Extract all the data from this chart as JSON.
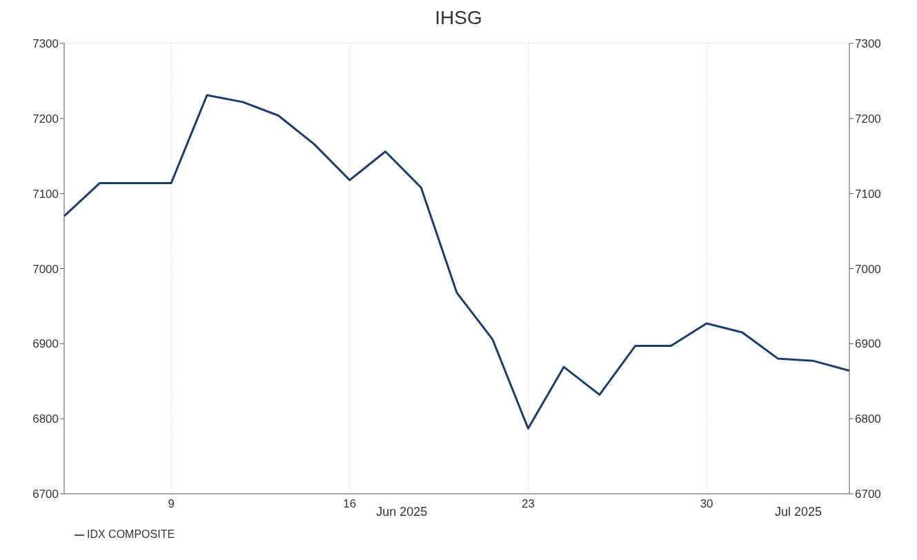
{
  "chart_data": {
    "type": "line",
    "title": "IHSG",
    "categories": [
      null,
      null,
      null,
      "9",
      null,
      null,
      null,
      null,
      "16",
      null,
      null,
      null,
      null,
      "23",
      null,
      null,
      null,
      null,
      "30",
      null,
      null,
      null,
      null
    ],
    "series": [
      {
        "name": "IDX COMPOSITE",
        "color": "#1a3d6d",
        "values": [
          7070,
          7114,
          7114,
          7114,
          7231,
          7222,
          7204,
          7166,
          7118,
          7156,
          7108,
          6968,
          6906,
          6787,
          6869,
          6832,
          6897,
          6897,
          6927,
          6915,
          6880,
          6877,
          6864
        ]
      }
    ],
    "ylim": [
      6700,
      7300
    ],
    "yticks": [
      6700,
      6800,
      6900,
      7000,
      7100,
      7200,
      7300
    ],
    "y2lim": [
      6700,
      7300
    ],
    "y2ticks": [
      6700,
      6800,
      6900,
      7000,
      7100,
      7200,
      7300
    ],
    "annotations": [
      "Jun 2025",
      "Jul 2025"
    ],
    "grid": true,
    "legend": "bottom left",
    "marker": "none",
    "line_style": "solid"
  }
}
